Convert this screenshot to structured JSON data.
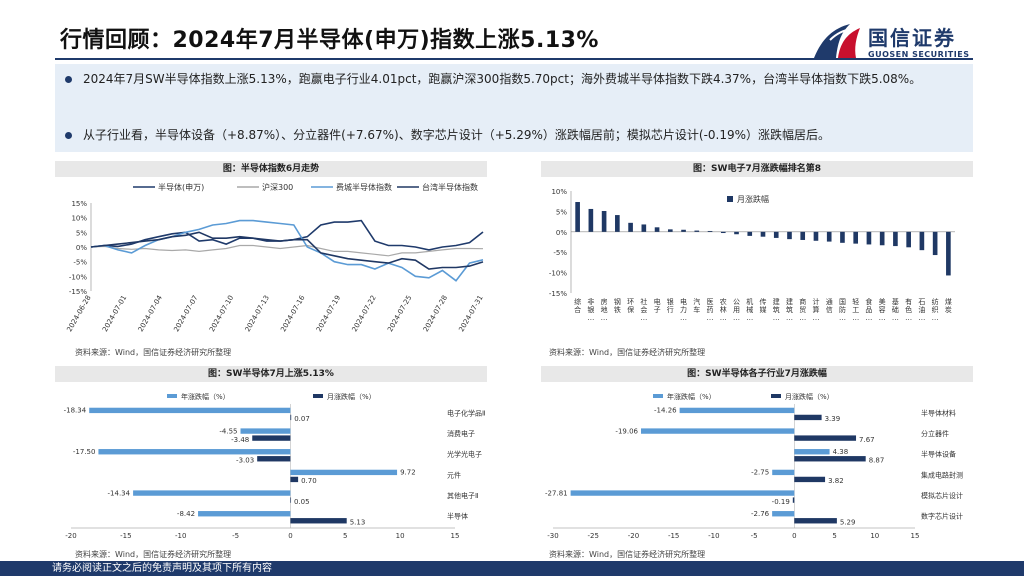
{
  "header": {
    "title": "行情回顾：2024年7月半导体(申万)指数上涨5.13%",
    "logo_text": "国信证券",
    "logo_sub": "GUOSEN SECURITIES"
  },
  "summary": [
    "2024年7月SW半导体指数上涨5.13%，跑赢电子行业4.01pct，跑赢沪深300指数5.70pct；海外费城半导体指数下跌4.37%，台湾半导体指数下跌5.08%。",
    "从子行业看，半导体设备（+8.87%）、分立器件(+7.67%)、数字芯片设计（+5.29%）涨跌幅居前；模拟芯片设计(-0.19%）涨跌幅居后。"
  ],
  "footer": {
    "disclaimer": "请务必阅读正文之后的免责声明及其项下所有内容"
  },
  "colors": {
    "navy": "#1f3a6b",
    "sw": "#1f3a6b",
    "hs300": "#a9a9a9",
    "sox": "#5b9bd5",
    "tw": "#203864",
    "bar_navy": "#1f3864",
    "bar_light": "#5b9bd5"
  },
  "chart_data": [
    {
      "type": "line",
      "title": "图：半导体指数6月走势",
      "source": "资料来源：Wind，国信证券经济研究所整理",
      "ylim": [
        -15,
        15
      ],
      "yticks": [
        "15%",
        "10%",
        "5%",
        "0%",
        "-5%",
        "-10%",
        "-15%"
      ],
      "xticks": [
        "2024-06-28",
        "2024-07-01",
        "2024-07-04",
        "2024-07-07",
        "2024-07-10",
        "2024-07-13",
        "2024-07-16",
        "2024-07-19",
        "2024-07-22",
        "2024-07-25",
        "2024-07-28",
        "2024-07-31"
      ],
      "series": [
        {
          "name": "半导体(申万)",
          "values": [
            0,
            0.5,
            0.2,
            1.0,
            2.5,
            3.5,
            4.5,
            5.0,
            2.0,
            2.5,
            1.0,
            3.0,
            3.0,
            2.0,
            2.0,
            2.5,
            3.5,
            7.5,
            8.5,
            8.5,
            9.0,
            2.0,
            0.5,
            0.5,
            0.0,
            -1.0,
            0.0,
            0.5,
            1.5,
            5.13
          ]
        },
        {
          "name": "沪深300",
          "values": [
            0,
            0.2,
            -0.5,
            -0.8,
            -0.5,
            -1.0,
            -1.2,
            -1.0,
            -1.5,
            -1.0,
            -0.5,
            0.5,
            0.5,
            0.0,
            -0.5,
            0.0,
            0.5,
            -0.5,
            -1.5,
            -1.5,
            -2.0,
            -2.5,
            -3.0,
            -2.0,
            -2.0,
            -1.5,
            -1.0,
            -0.5,
            -0.5,
            -0.57
          ]
        },
        {
          "name": "费城半导体指数",
          "values": [
            0,
            0.5,
            -1.0,
            -2.0,
            0.5,
            2.5,
            3.5,
            5.0,
            6.0,
            7.5,
            8.0,
            9.0,
            9.0,
            8.5,
            8.0,
            7.5,
            0.0,
            -2.0,
            -5.0,
            -6.0,
            -6.0,
            -7.5,
            -5.5,
            -7.0,
            -10.0,
            -10.5,
            -8.0,
            -11.5,
            -5.5,
            -4.37
          ]
        },
        {
          "name": "台湾半导体指数",
          "values": [
            0,
            0.5,
            1.0,
            1.5,
            2.0,
            2.5,
            3.5,
            4.0,
            5.0,
            3.0,
            3.0,
            3.5,
            3.0,
            2.5,
            2.0,
            2.5,
            2.5,
            -2.0,
            -3.0,
            -4.0,
            -4.5,
            -5.0,
            -5.5,
            -4.0,
            -4.5,
            -7.5,
            -7.0,
            -7.0,
            -6.5,
            -5.08
          ]
        }
      ]
    },
    {
      "type": "bar",
      "title": "图：SW电子7月涨跌幅排名第8",
      "source": "资料来源：Wind，国信证券经济研究所整理",
      "legend": [
        "月涨跌幅"
      ],
      "ylim": [
        -15,
        10
      ],
      "yticks": [
        "10%",
        "5%",
        "0%",
        "-5%",
        "-10%",
        "-15%"
      ],
      "categories": [
        "综合",
        "非银金融",
        "房地产",
        "钢铁",
        "环保",
        "社会服务",
        "电子",
        "银行",
        "电力设备",
        "汽车",
        "医药生物",
        "农林牧渔",
        "公用事业",
        "机械设备",
        "传媒",
        "建筑材料",
        "建筑装饰",
        "商贸零售",
        "计算机",
        "通信",
        "国防军工",
        "轻工制造",
        "食品饮料",
        "美容护理",
        "基础化工",
        "有色金属",
        "石油石化",
        "纺织服饰",
        "煤炭"
      ],
      "values": [
        7.3,
        5.6,
        5.1,
        4.1,
        2.2,
        1.8,
        1.1,
        0.6,
        0.5,
        0.3,
        0.2,
        -0.3,
        -0.6,
        -1.0,
        -1.2,
        -1.5,
        -1.8,
        -2.0,
        -2.2,
        -2.4,
        -2.7,
        -2.9,
        -3.1,
        -3.3,
        -3.5,
        -3.8,
        -4.5,
        -5.7,
        -10.7
      ]
    },
    {
      "type": "bar",
      "orientation": "horizontal",
      "title": "图：SW半导体7月上涨5.13%",
      "source": "资料来源：Wind，国信证券经济研究所整理",
      "xlim": [
        -20,
        15
      ],
      "xticks": [
        "-20",
        "-15",
        "-10",
        "-5",
        "0",
        "5",
        "10",
        "15"
      ],
      "categories": [
        "电子化学品Ⅱ",
        "消费电子",
        "光学光电子",
        "元件",
        "其他电子Ⅱ",
        "半导体"
      ],
      "series": [
        {
          "name": "年涨跌幅（%）",
          "values": [
            -18.34,
            -4.55,
            -17.5,
            9.72,
            -14.34,
            -8.42
          ]
        },
        {
          "name": "月涨跌幅（%）",
          "values": [
            0.07,
            -3.48,
            -3.03,
            0.7,
            0.05,
            5.13
          ]
        }
      ],
      "labels": {
        "year": [
          "-18.34",
          "-4.55",
          "-17.50",
          "9.72",
          "-14.34",
          "-8.42"
        ],
        "month": [
          "0.07",
          "-3.48",
          "-3.03",
          "0.70",
          "0.05",
          "5.13"
        ]
      }
    },
    {
      "type": "bar",
      "orientation": "horizontal",
      "title": "图：SW半导体各子行业7月涨跌幅",
      "source": "资料来源：Wind，国信证券经济研究所整理",
      "xlim": [
        -30,
        15
      ],
      "xticks": [
        "-30",
        "-25",
        "-20",
        "-15",
        "-10",
        "-5",
        "0",
        "5",
        "10",
        "15"
      ],
      "categories": [
        "半导体材料",
        "分立器件",
        "半导体设备",
        "集成电路封测",
        "模拟芯片设计",
        "数字芯片设计"
      ],
      "series": [
        {
          "name": "年涨跌幅（%）",
          "values": [
            -14.26,
            -19.06,
            4.38,
            -2.75,
            -27.81,
            -2.76
          ]
        },
        {
          "name": "月涨跌幅（%）",
          "values": [
            3.39,
            7.67,
            8.87,
            3.82,
            -0.19,
            5.29
          ]
        }
      ],
      "labels": {
        "year": [
          "-14.26",
          "-19.06",
          "4.38",
          "-2.75",
          "-27.81",
          "-2.76"
        ],
        "month": [
          "3.39",
          "7.67",
          "8.87",
          "3.82",
          "-0.19",
          "5.29"
        ]
      }
    }
  ]
}
